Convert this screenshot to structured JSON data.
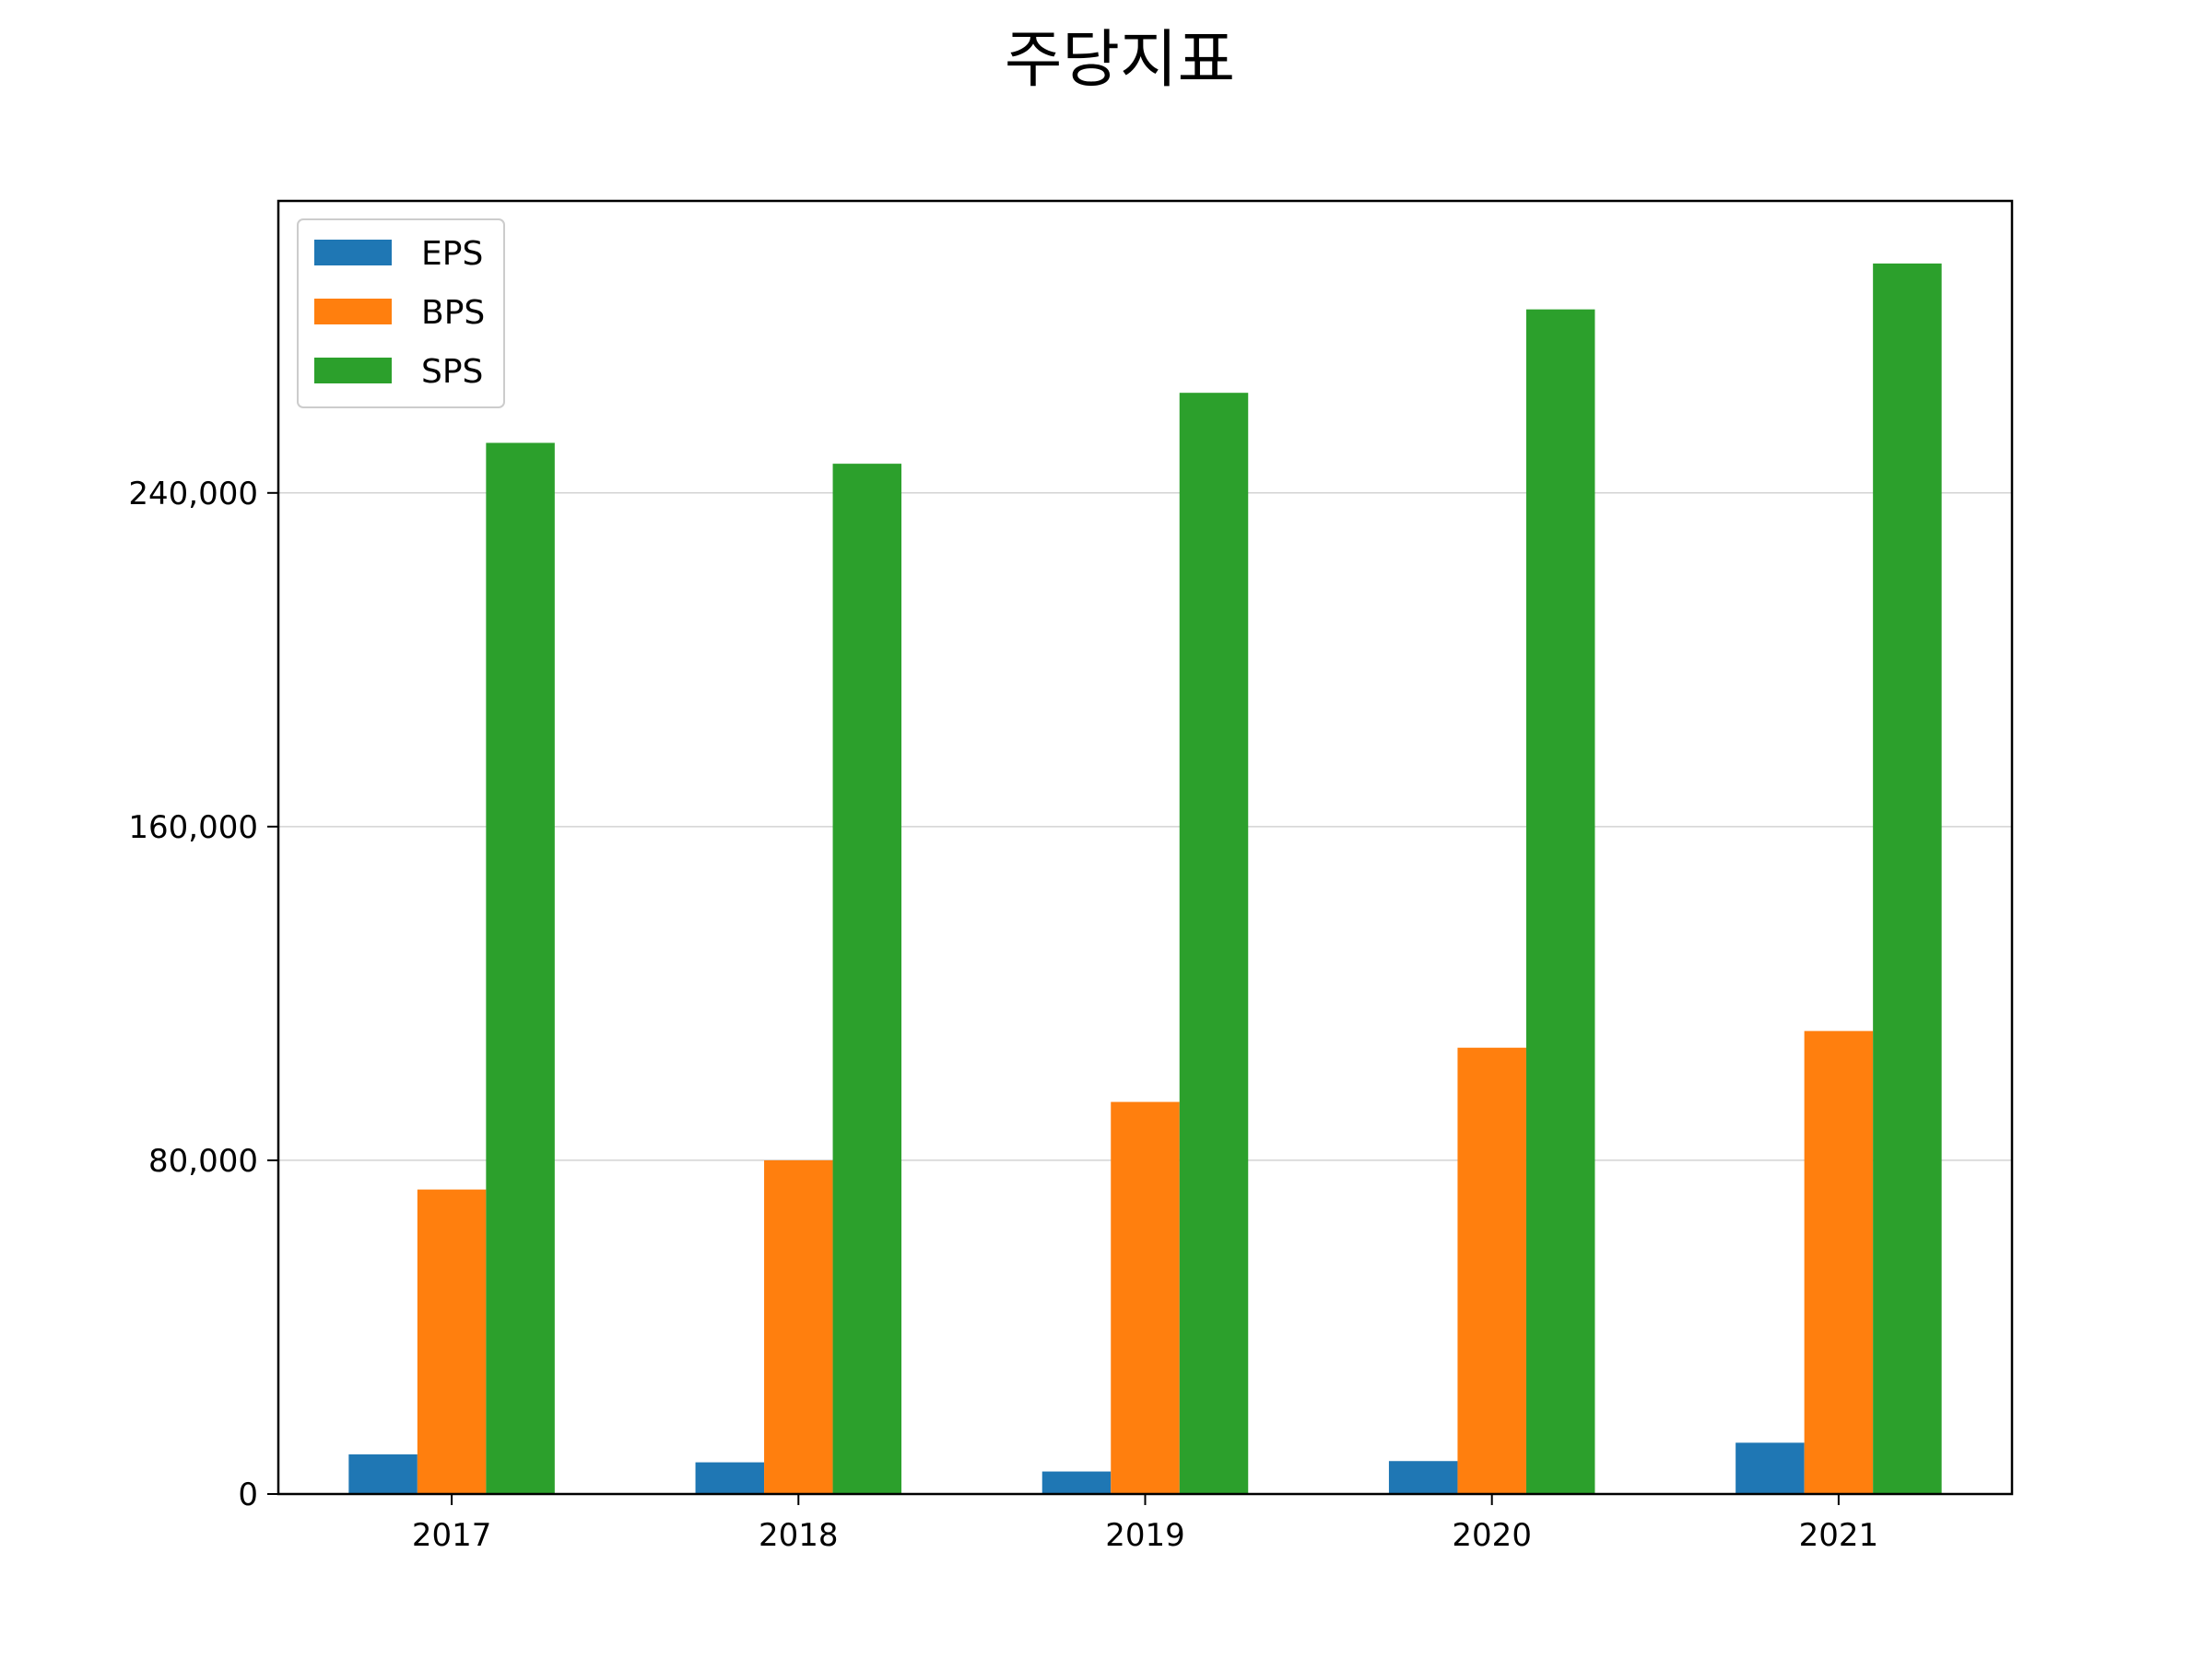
{
  "chart_data": {
    "type": "bar",
    "title": "주당지표",
    "xlabel": "",
    "ylabel": "",
    "categories": [
      "2017",
      "2018",
      "2019",
      "2020",
      "2021"
    ],
    "series": [
      {
        "name": "EPS",
        "color": "#1f77b4",
        "values": [
          9500,
          7600,
          5400,
          7900,
          12300
        ]
      },
      {
        "name": "BPS",
        "color": "#ff7f0e",
        "values": [
          73000,
          80000,
          94000,
          107000,
          111000
        ]
      },
      {
        "name": "SPS",
        "color": "#2ca02c",
        "values": [
          252000,
          247000,
          264000,
          284000,
          295000
        ]
      }
    ],
    "ylim": [
      0,
      310000
    ],
    "yticks": [
      0,
      80000,
      160000,
      240000
    ],
    "ytick_labels": [
      "0",
      "80,000",
      "160,000",
      "240,000"
    ],
    "grid": "y",
    "legend_position": "top-left"
  }
}
